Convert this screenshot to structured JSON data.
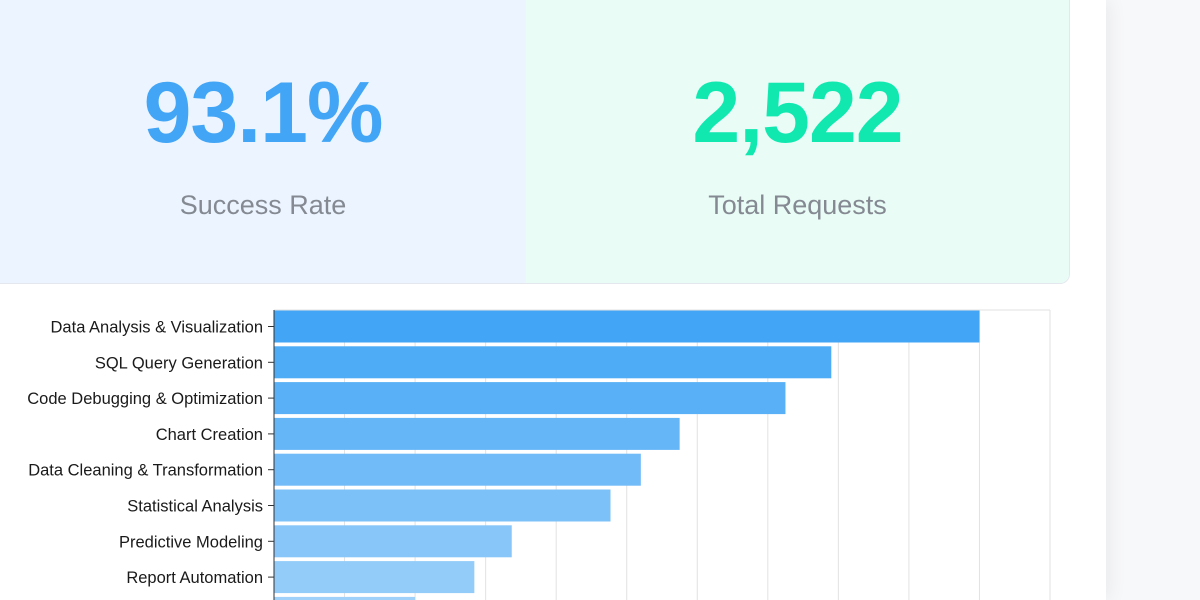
{
  "colors": {
    "success_value": "#42a5f5",
    "requests_value": "#10e8b0",
    "bar_start": "#42a5f5",
    "bar_end": "#9fd1fa"
  },
  "stats": [
    {
      "value": "93.1%",
      "label": "Success Rate"
    },
    {
      "value": "2,522",
      "label": "Total Requests"
    }
  ],
  "chart_data": {
    "type": "bar",
    "orientation": "horizontal",
    "categories": [
      "Data Analysis & Visualization",
      "SQL Query Generation",
      "Code Debugging & Optimization",
      "Chart Creation",
      "Data Cleaning & Transformation",
      "Statistical Analysis",
      "Predictive Modeling",
      "Report Automation",
      ""
    ],
    "values": [
      1000,
      790,
      725,
      575,
      520,
      477,
      337,
      284,
      200
    ],
    "xlim": [
      0,
      1100
    ],
    "grid": true,
    "title": "",
    "xlabel": "",
    "ylabel": ""
  }
}
